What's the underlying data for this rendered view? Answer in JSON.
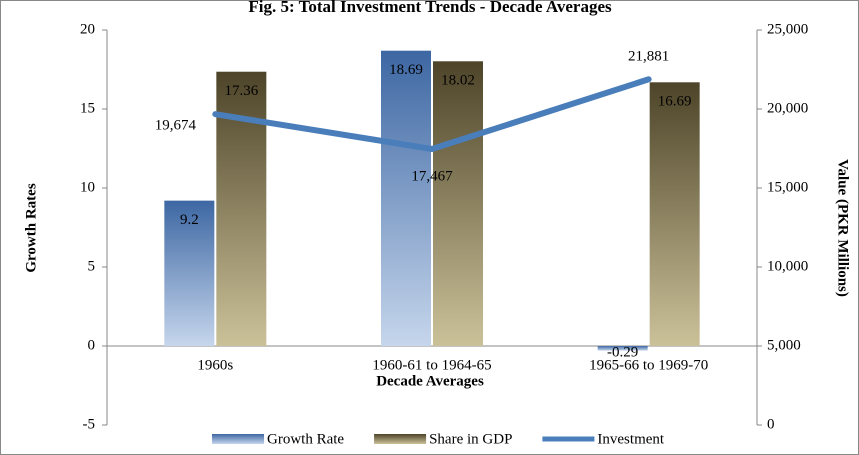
{
  "chart_data": {
    "type": "bar",
    "title": "Fig. 5: Total Investment Trends - Decade Averages",
    "xlabel": "Decade Averages",
    "ylabel": "Growth Rates",
    "y2label": "Value (PKR Millions)",
    "categories": [
      "1960s",
      "1960-61 to 1964-65",
      "1965-66 to 1969-70"
    ],
    "series": [
      {
        "name": "Growth Rate",
        "type": "bar",
        "color": "#3d67a3",
        "values": [
          9.2,
          18.69,
          -0.29
        ]
      },
      {
        "name": "Share in GDP",
        "type": "bar",
        "color": "#4d4429",
        "values": [
          17.36,
          18.02,
          16.69
        ]
      },
      {
        "name": "Investment",
        "type": "line",
        "axis": "y2",
        "color": "#4a7ebb",
        "values": [
          19674,
          17467,
          21881
        ],
        "value_labels": [
          "19,674",
          "17,467",
          "21,881"
        ]
      }
    ],
    "ylim": [
      -5,
      20
    ],
    "yticks": [
      -5,
      0,
      5,
      10,
      15,
      20
    ],
    "y2lim": [
      0,
      25000
    ],
    "y2ticks": [
      0,
      {
        "value": 5000,
        "label": "5,000"
      },
      {
        "value": 10000,
        "label": "10,000"
      },
      {
        "value": 15000,
        "label": "15,000"
      },
      {
        "value": 20000,
        "label": "20,000"
      },
      {
        "value": 25000,
        "label": "25,000"
      }
    ],
    "grid": false,
    "legend": "bottom"
  }
}
